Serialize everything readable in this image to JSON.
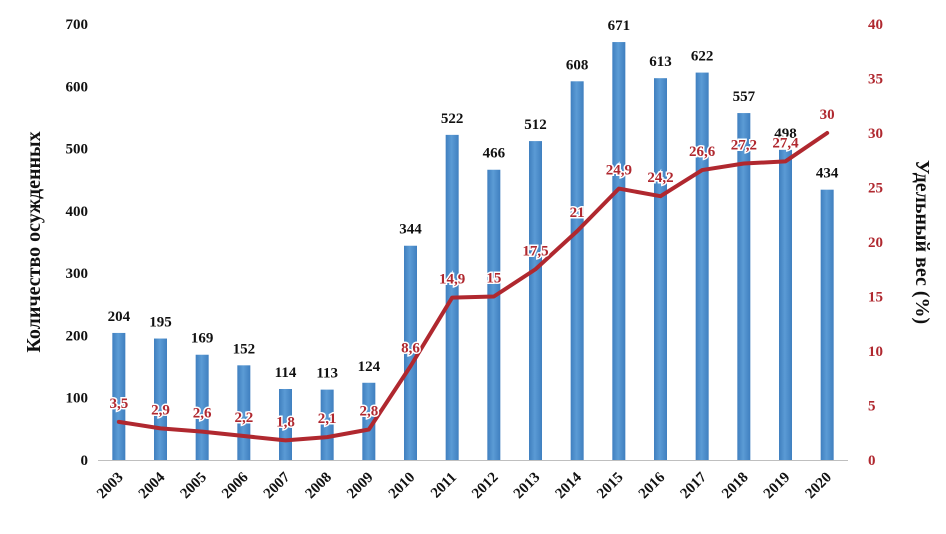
{
  "chart_data": {
    "type": "bar+line",
    "categories": [
      "2003",
      "2004",
      "2005",
      "2006",
      "2007",
      "2008",
      "2009",
      "2010",
      "2011",
      "2012",
      "2013",
      "2014",
      "2015",
      "2016",
      "2017",
      "2018",
      "2019",
      "2020"
    ],
    "series": [
      {
        "name": "Количество осужденных",
        "type": "bar",
        "axis": "left",
        "values": [
          204,
          195,
          169,
          152,
          114,
          113,
          124,
          344,
          522,
          466,
          512,
          608,
          671,
          613,
          622,
          557,
          498,
          434
        ],
        "labels": [
          "204",
          "195",
          "169",
          "152",
          "114",
          "113",
          "124",
          "344",
          "522",
          "466",
          "512",
          "608",
          "671",
          "613",
          "622",
          "557",
          "498",
          "434"
        ]
      },
      {
        "name": "Удельный вес (%)",
        "type": "line",
        "axis": "right",
        "values": [
          3.5,
          2.9,
          2.6,
          2.2,
          1.8,
          2.1,
          2.8,
          8.6,
          14.9,
          15,
          17.5,
          21,
          24.9,
          24.2,
          26.6,
          27.2,
          27.4,
          30
        ],
        "labels": [
          "3,5",
          "2,9",
          "2,6",
          "2,2",
          "1,8",
          "2,1",
          "2,8",
          "8,6",
          "14,9",
          "15",
          "17,5",
          "21",
          "24,9",
          "24,2",
          "26,6",
          "27,2",
          "27,4",
          "30"
        ]
      }
    ],
    "ylabel_left": "Количество осужденных",
    "ylabel_right": "Удельный вес (%)",
    "ylim_left": [
      0,
      700
    ],
    "yticks_left": [
      "0",
      "100",
      "200",
      "300",
      "400",
      "500",
      "600",
      "700"
    ],
    "ylim_right": [
      0,
      40
    ],
    "yticks_right": [
      "0",
      "5",
      "10",
      "15",
      "20",
      "25",
      "30",
      "35",
      "40"
    ],
    "colors": {
      "bar": "#5b9bd5",
      "bar_dark": "#3f7fbf",
      "line": "#b0282f",
      "right_axis_text": "#b0282f",
      "text": "#111111"
    }
  }
}
